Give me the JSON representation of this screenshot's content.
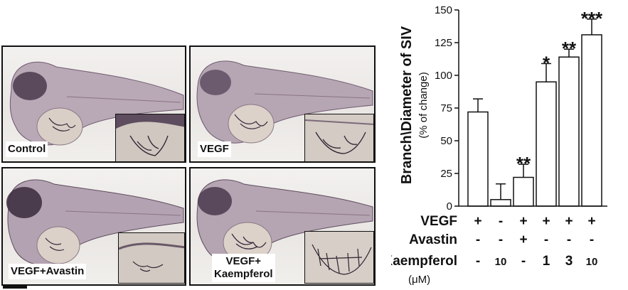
{
  "panels": [
    {
      "label": "Control"
    },
    {
      "label": "VEGF"
    },
    {
      "label": "VEGF+Avastin"
    },
    {
      "label_lines": [
        "VEGF+",
        "Kaempferol"
      ]
    }
  ],
  "chart_data": {
    "type": "bar",
    "ylabel": "Branch\\Diameter of SIV",
    "ylabel_sub": "(% of change)",
    "ylim": [
      0,
      150
    ],
    "yticks": [
      0,
      25,
      50,
      75,
      100,
      125,
      150
    ],
    "values": [
      72,
      5,
      22,
      95,
      114,
      131
    ],
    "errors": [
      10,
      12,
      10,
      14,
      6,
      12
    ],
    "significance": [
      "",
      "",
      "**",
      "*",
      "**",
      "***"
    ],
    "bar_color": "#ffffff",
    "factors": [
      {
        "name": "VEGF",
        "levels": [
          "+",
          "-",
          "+",
          "+",
          "+",
          "+"
        ]
      },
      {
        "name": "Avastin",
        "levels": [
          "-",
          "-",
          "+",
          "-",
          "-",
          "-"
        ]
      },
      {
        "name": "Kaempferol",
        "levels": [
          "-",
          "10",
          "-",
          "1",
          "3",
          "10"
        ]
      }
    ],
    "unit_note": "(μM)"
  }
}
